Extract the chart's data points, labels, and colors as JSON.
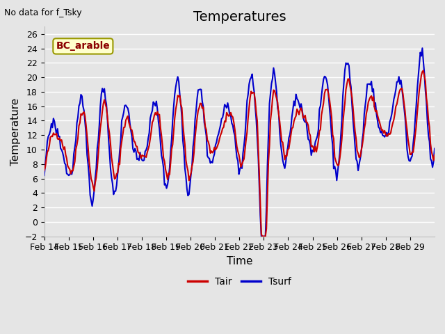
{
  "title": "Temperatures",
  "xlabel": "Time",
  "ylabel": "Temperature",
  "top_left_text": "No data for f_Tsky",
  "legend_label_text": "BC_arable",
  "ylim": [
    -2,
    27
  ],
  "yticks": [
    -2,
    0,
    2,
    4,
    6,
    8,
    10,
    12,
    14,
    16,
    18,
    20,
    22,
    24,
    26
  ],
  "xtick_labels": [
    "Feb 14",
    "Feb 15",
    "Feb 16",
    "Feb 17",
    "Feb 18",
    "Feb 19",
    "Feb 20",
    "Feb 21",
    "Feb 22",
    "Feb 23",
    "Feb 24",
    "Feb 25",
    "Feb 26",
    "Feb 27",
    "Feb 28",
    "Feb 29"
  ],
  "bg_color": "#e5e5e5",
  "plot_bg_color": "#e5e5e5",
  "grid_color": "#ffffff",
  "tair_color": "#cc0000",
  "tsurf_color": "#0000cc",
  "legend_text_color": "#8b0000",
  "legend_box_facecolor": "#ffffcc",
  "legend_box_edgecolor": "#999900",
  "title_fontsize": 14,
  "axis_label_fontsize": 11,
  "tick_fontsize": 9,
  "line_width": 1.5,
  "n_days": 16
}
